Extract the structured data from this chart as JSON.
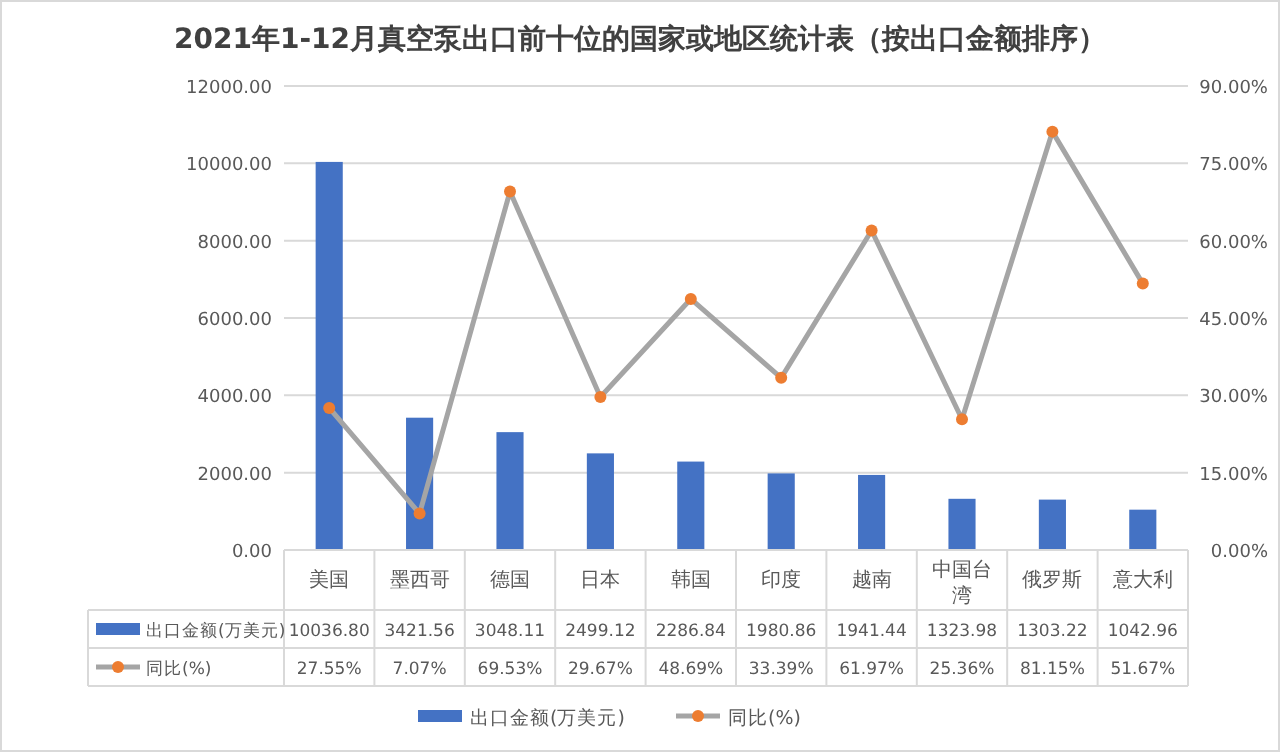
{
  "chart_data": {
    "type": "bar",
    "title": "2021年1-12月真空泵出口前十位的国家或地区统计表（按出口金额排序）",
    "categories": [
      "美国",
      "墨西哥",
      "德国",
      "日本",
      "韩国",
      "印度",
      "越南",
      "中国台湾",
      "俄罗斯",
      "意大利"
    ],
    "series": [
      {
        "name": "出口金额(万美元)",
        "color": "#4472c4",
        "values": [
          10036.8,
          3421.56,
          3048.11,
          2499.12,
          2286.84,
          1980.86,
          1941.44,
          1323.98,
          1303.22,
          1042.96
        ],
        "value_labels": [
          "10036.80",
          "3421.56",
          "3048.11",
          "2499.12",
          "2286.84",
          "1980.86",
          "1941.44",
          "1323.98",
          "1303.22",
          "1042.96"
        ]
      },
      {
        "name": "同比(%)",
        "type": "line",
        "axis": "y2",
        "color": "#a5a5a5",
        "colors": [
          "#ed7d31",
          "#ed7d31",
          "#ed7d31",
          "#ed7d31",
          "#ed7d31",
          "#ed7d31",
          "#ed7d31",
          "#ed7d31",
          "#ed7d31",
          "#ed7d31"
        ],
        "marker": "circle",
        "values": [
          27.55,
          7.07,
          69.53,
          29.67,
          48.69,
          33.39,
          61.97,
          25.36,
          81.15,
          51.67
        ],
        "value_labels": [
          "27.55%",
          "7.07%",
          "69.53%",
          "29.67%",
          "48.69%",
          "33.39%",
          "61.97%",
          "25.36%",
          "81.15%",
          "51.67%"
        ]
      }
    ],
    "ylim": [
      0,
      12000
    ],
    "yticks": [
      {
        "value": 0,
        "label": "0.00"
      },
      {
        "value": 2000,
        "label": "2000.00"
      },
      {
        "value": 4000,
        "label": "4000.00"
      },
      {
        "value": 6000,
        "label": "6000.00"
      },
      {
        "value": 8000,
        "label": "8000.00"
      },
      {
        "value": 10000,
        "label": "10000.00"
      },
      {
        "value": 12000,
        "label": "12000.00"
      }
    ],
    "y2lim": [
      0,
      90
    ],
    "y2ticks": [
      {
        "value": 0,
        "label": "0.00%"
      },
      {
        "value": 15,
        "label": "15.00%"
      },
      {
        "value": 30,
        "label": "30.00%"
      },
      {
        "value": 45,
        "label": "45.00%"
      },
      {
        "value": 60,
        "label": "60.00%"
      },
      {
        "value": 75,
        "label": "75.00%"
      },
      {
        "value": 90,
        "label": "90.00%"
      }
    ],
    "grid": "y",
    "legend": "bottom"
  }
}
